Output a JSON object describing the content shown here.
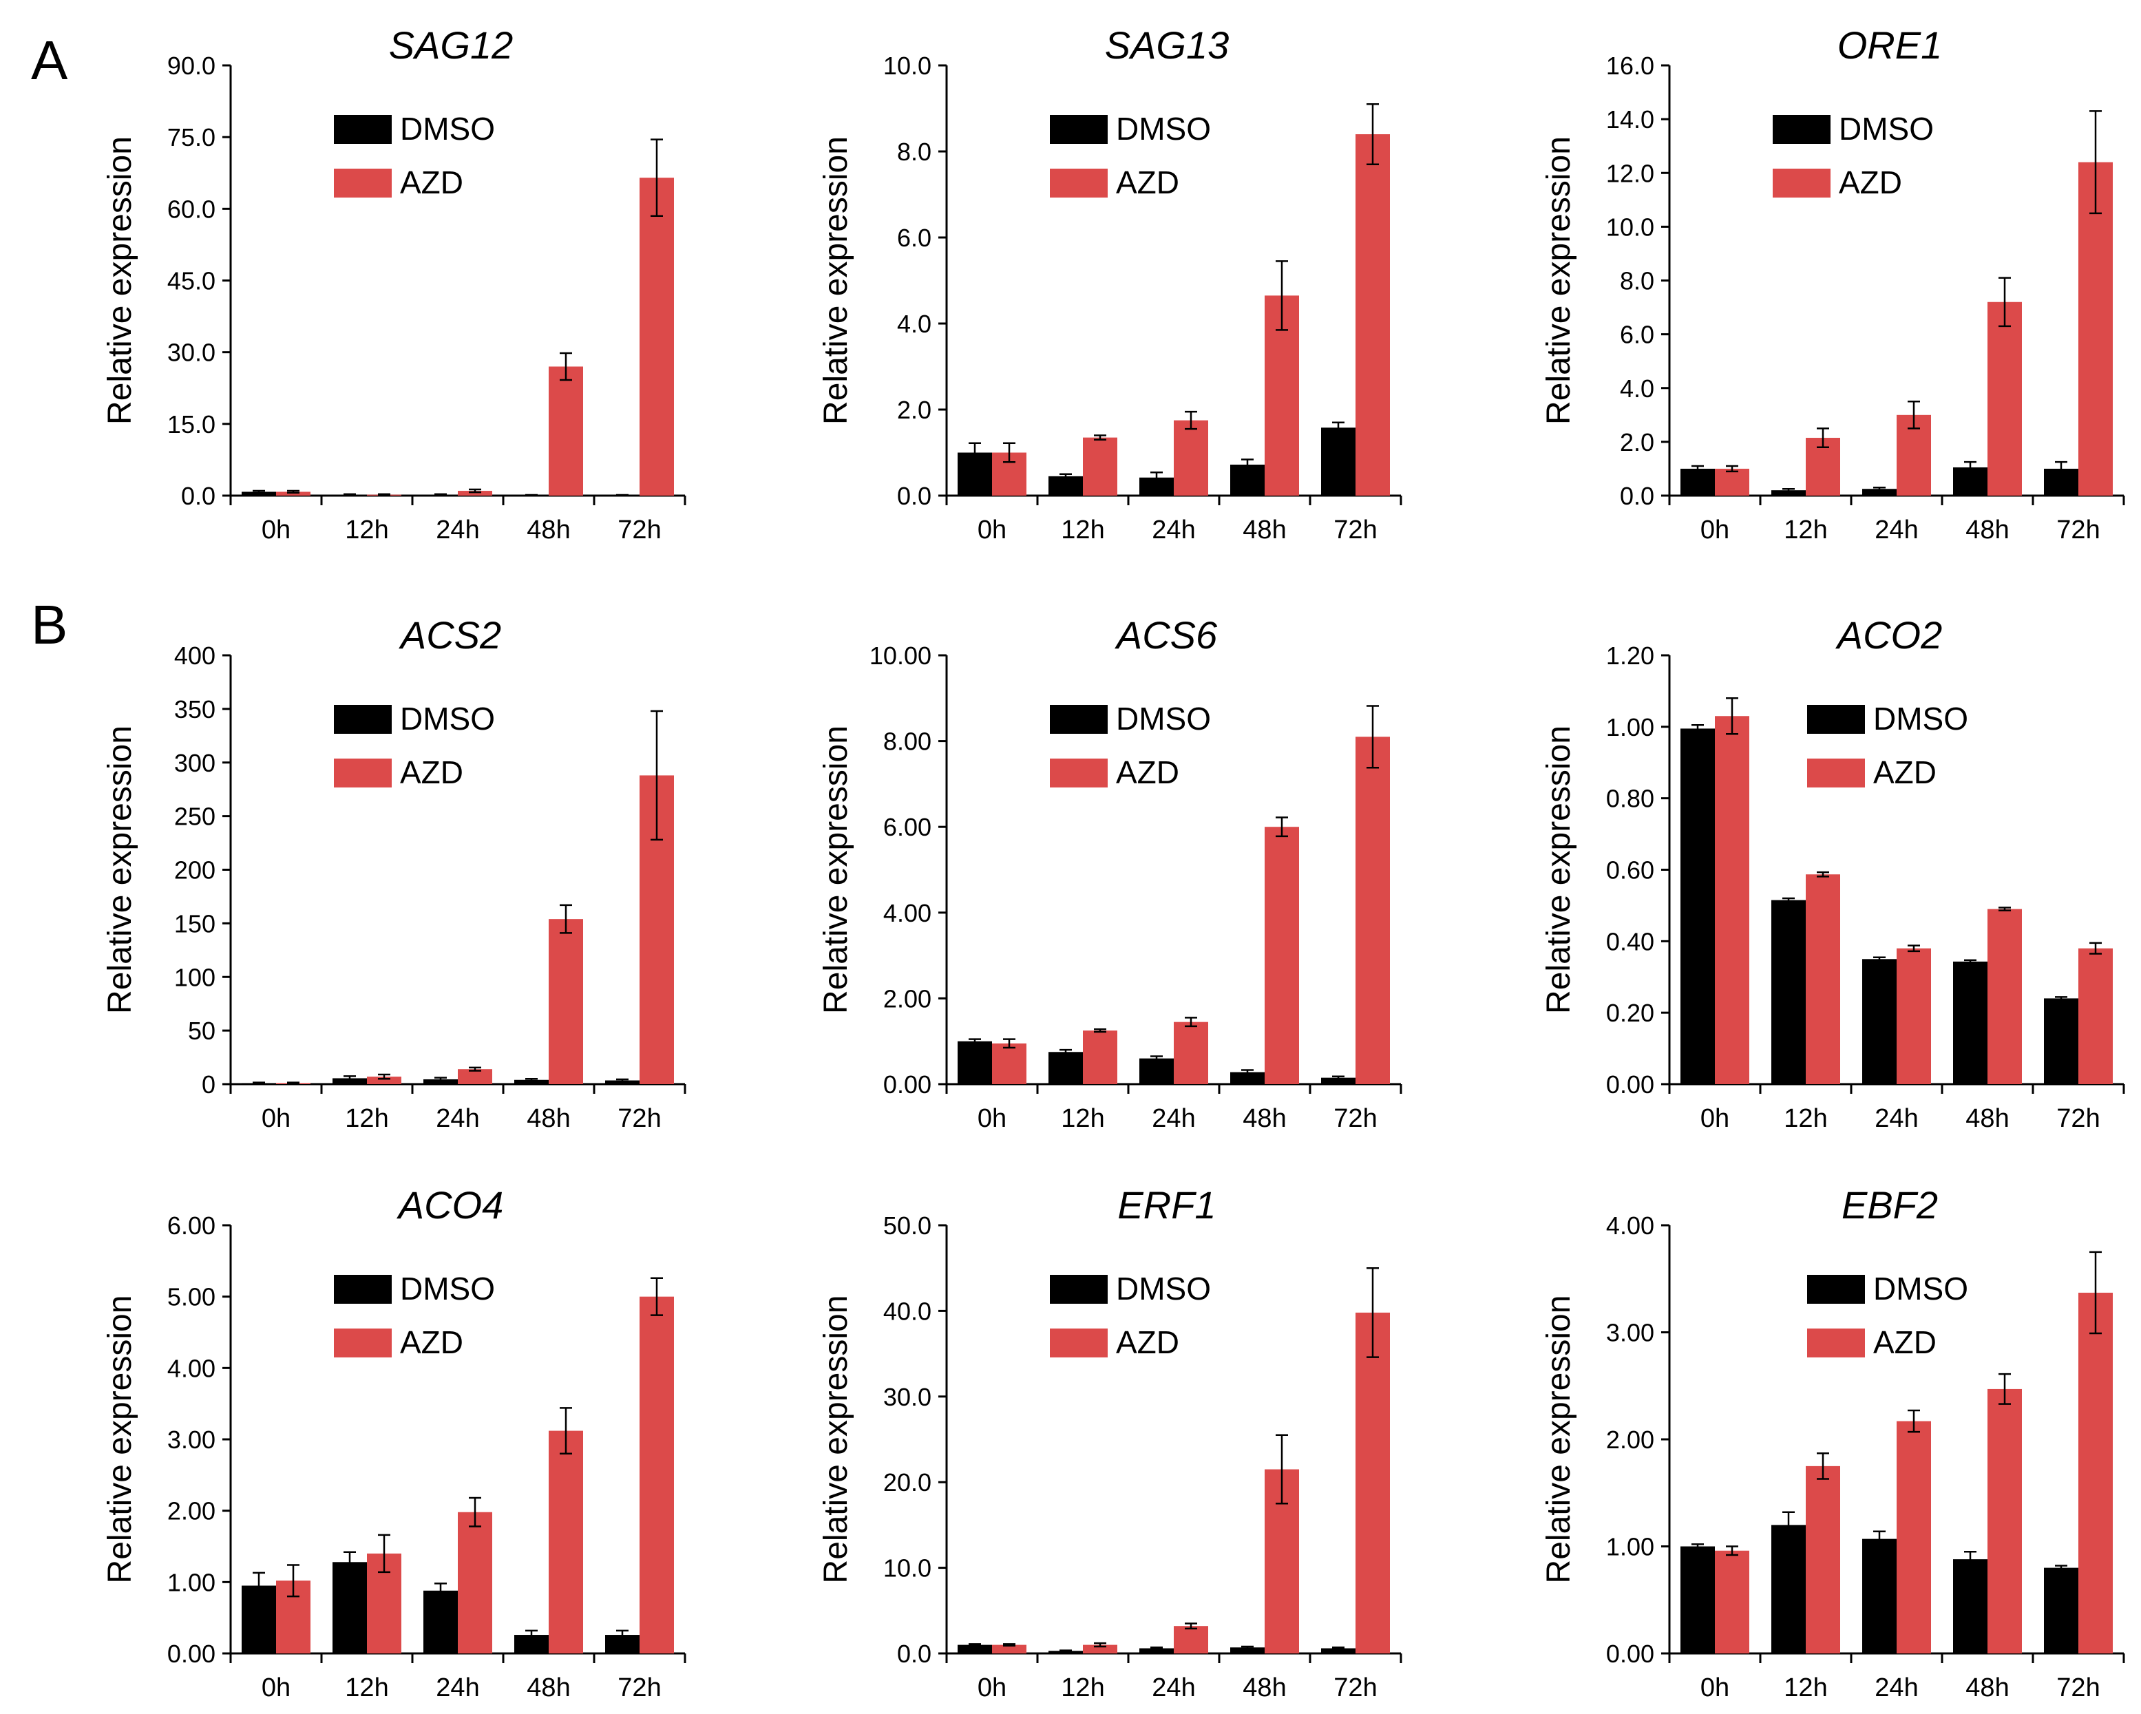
{
  "figure": {
    "panel_labels": [
      "A",
      "B"
    ]
  },
  "colors": {
    "DMSO": "#000000",
    "AZD": "#dc4a4a",
    "axis": "#000000",
    "error_bar": "#000000"
  },
  "chart_data": [
    {
      "type": "bar",
      "title": "SAG12",
      "ylabel": "Relative expression",
      "xlabel": "",
      "categories": [
        "0h",
        "12h",
        "24h",
        "48h",
        "72h"
      ],
      "yticks": [
        "0.0",
        "15.0",
        "30.0",
        "45.0",
        "60.0",
        "75.0",
        "90.0"
      ],
      "ylim": [
        0,
        90
      ],
      "legend": [
        "DMSO",
        "AZD"
      ],
      "legend_position": "top-left",
      "series": [
        {
          "name": "DMSO",
          "values": [
            0.8,
            0.2,
            0.2,
            0.1,
            0.1
          ],
          "errors": [
            0.2,
            0.1,
            0.1,
            0.05,
            0.05
          ]
        },
        {
          "name": "AZD",
          "values": [
            0.8,
            0.2,
            1.0,
            27.0,
            66.5
          ],
          "errors": [
            0.2,
            0.1,
            0.3,
            2.8,
            8.0
          ]
        }
      ]
    },
    {
      "type": "bar",
      "title": "SAG13",
      "ylabel": "Relative expression",
      "xlabel": "",
      "categories": [
        "0h",
        "12h",
        "24h",
        "48h",
        "72h"
      ],
      "yticks": [
        "0.0",
        "2.0",
        "4.0",
        "6.0",
        "8.0",
        "10.0"
      ],
      "ylim": [
        0,
        10
      ],
      "legend": [
        "DMSO",
        "AZD"
      ],
      "legend_position": "top-left",
      "series": [
        {
          "name": "DMSO",
          "values": [
            1.0,
            0.45,
            0.42,
            0.72,
            1.58
          ],
          "errors": [
            0.22,
            0.05,
            0.12,
            0.12,
            0.12
          ]
        },
        {
          "name": "AZD",
          "values": [
            1.0,
            1.35,
            1.75,
            4.65,
            8.4
          ],
          "errors": [
            0.22,
            0.05,
            0.2,
            0.8,
            0.7
          ]
        }
      ]
    },
    {
      "type": "bar",
      "title": "ORE1",
      "ylabel": "Relative expression",
      "xlabel": "",
      "categories": [
        "0h",
        "12h",
        "24h",
        "48h",
        "72h"
      ],
      "yticks": [
        "0.0",
        "2.0",
        "4.0",
        "6.0",
        "8.0",
        "10.0",
        "12.0",
        "14.0",
        "16.0"
      ],
      "ylim": [
        0,
        16
      ],
      "legend": [
        "DMSO",
        "AZD"
      ],
      "legend_position": "top-left",
      "series": [
        {
          "name": "DMSO",
          "values": [
            1.0,
            0.2,
            0.25,
            1.05,
            1.0
          ],
          "errors": [
            0.1,
            0.05,
            0.05,
            0.2,
            0.25
          ]
        },
        {
          "name": "AZD",
          "values": [
            1.0,
            2.15,
            3.0,
            7.2,
            12.4
          ],
          "errors": [
            0.1,
            0.35,
            0.5,
            0.9,
            1.9
          ]
        }
      ]
    },
    {
      "type": "bar",
      "title": "ACS2",
      "ylabel": "Relative expression",
      "xlabel": "",
      "categories": [
        "0h",
        "12h",
        "24h",
        "48h",
        "72h"
      ],
      "yticks": [
        "0",
        "50",
        "100",
        "150",
        "200",
        "250",
        "300",
        "350",
        "400"
      ],
      "ylim": [
        0,
        400
      ],
      "legend": [
        "DMSO",
        "AZD"
      ],
      "legend_position": "top-left",
      "series": [
        {
          "name": "DMSO",
          "values": [
            1.0,
            5.5,
            4.5,
            4.0,
            3.5
          ],
          "errors": [
            0.5,
            2.0,
            1.5,
            1.0,
            1.0
          ]
        },
        {
          "name": "AZD",
          "values": [
            1.0,
            7.0,
            14.0,
            154.0,
            288.0
          ],
          "errors": [
            0.5,
            2.0,
            1.5,
            13.0,
            60.0
          ]
        }
      ]
    },
    {
      "type": "bar",
      "title": "ACS6",
      "ylabel": "Relative expression",
      "xlabel": "",
      "categories": [
        "0h",
        "12h",
        "24h",
        "48h",
        "72h"
      ],
      "yticks": [
        "0.00",
        "2.00",
        "4.00",
        "6.00",
        "8.00",
        "10.00"
      ],
      "ylim": [
        0,
        10
      ],
      "legend": [
        "DMSO",
        "AZD"
      ],
      "legend_position": "top-left",
      "series": [
        {
          "name": "DMSO",
          "values": [
            1.0,
            0.75,
            0.6,
            0.28,
            0.15
          ],
          "errors": [
            0.05,
            0.05,
            0.05,
            0.05,
            0.03
          ]
        },
        {
          "name": "AZD",
          "values": [
            0.95,
            1.25,
            1.45,
            6.0,
            8.1
          ],
          "errors": [
            0.1,
            0.03,
            0.1,
            0.22,
            0.72
          ]
        }
      ]
    },
    {
      "type": "bar",
      "title": "ACO2",
      "ylabel": "Relative expression",
      "xlabel": "",
      "categories": [
        "0h",
        "12h",
        "24h",
        "48h",
        "72h"
      ],
      "yticks": [
        "0.00",
        "0.20",
        "0.40",
        "0.60",
        "0.80",
        "1.00",
        "1.20"
      ],
      "ylim": [
        0,
        1.2
      ],
      "legend": [
        "DMSO",
        "AZD"
      ],
      "legend_position": "top-right",
      "series": [
        {
          "name": "DMSO",
          "values": [
            0.995,
            0.515,
            0.35,
            0.343,
            0.24
          ],
          "errors": [
            0.01,
            0.005,
            0.005,
            0.004,
            0.004
          ]
        },
        {
          "name": "AZD",
          "values": [
            1.03,
            0.587,
            0.38,
            0.49,
            0.38
          ],
          "errors": [
            0.05,
            0.006,
            0.008,
            0.004,
            0.015
          ]
        }
      ]
    },
    {
      "type": "bar",
      "title": "ACO4",
      "ylabel": "Relative expression",
      "xlabel": "",
      "categories": [
        "0h",
        "12h",
        "24h",
        "48h",
        "72h"
      ],
      "yticks": [
        "0.00",
        "1.00",
        "2.00",
        "3.00",
        "4.00",
        "5.00",
        "6.00"
      ],
      "ylim": [
        0,
        6
      ],
      "legend": [
        "DMSO",
        "AZD"
      ],
      "legend_position": "top-left",
      "series": [
        {
          "name": "DMSO",
          "values": [
            0.95,
            1.28,
            0.88,
            0.26,
            0.26
          ],
          "errors": [
            0.18,
            0.14,
            0.1,
            0.06,
            0.06
          ]
        },
        {
          "name": "AZD",
          "values": [
            1.02,
            1.4,
            1.98,
            3.12,
            5.0
          ],
          "errors": [
            0.22,
            0.26,
            0.2,
            0.32,
            0.26
          ]
        }
      ]
    },
    {
      "type": "bar",
      "title": "ERF1",
      "ylabel": "Relative expression",
      "xlabel": "",
      "categories": [
        "0h",
        "12h",
        "24h",
        "48h",
        "72h"
      ],
      "yticks": [
        "0.0",
        "10.0",
        "20.0",
        "30.0",
        "40.0",
        "50.0"
      ],
      "ylim": [
        0,
        50
      ],
      "legend": [
        "DMSO",
        "AZD"
      ],
      "legend_position": "top-left",
      "series": [
        {
          "name": "DMSO",
          "values": [
            1.0,
            0.3,
            0.6,
            0.7,
            0.6
          ],
          "errors": [
            0.1,
            0.05,
            0.1,
            0.1,
            0.1
          ]
        },
        {
          "name": "AZD",
          "values": [
            1.0,
            1.0,
            3.2,
            21.5,
            39.8
          ],
          "errors": [
            0.1,
            0.2,
            0.3,
            4.0,
            5.2
          ]
        }
      ]
    },
    {
      "type": "bar",
      "title": "EBF2",
      "ylabel": "Relative expression",
      "xlabel": "",
      "categories": [
        "0h",
        "12h",
        "24h",
        "48h",
        "72h"
      ],
      "yticks": [
        "0.00",
        "1.00",
        "2.00",
        "3.00",
        "4.00"
      ],
      "ylim": [
        0,
        4
      ],
      "legend": [
        "DMSO",
        "AZD"
      ],
      "legend_position": "top-right",
      "series": [
        {
          "name": "DMSO",
          "values": [
            1.0,
            1.2,
            1.07,
            0.88,
            0.8
          ],
          "errors": [
            0.02,
            0.12,
            0.07,
            0.07,
            0.02
          ]
        },
        {
          "name": "AZD",
          "values": [
            0.96,
            1.75,
            2.17,
            2.47,
            3.37
          ],
          "errors": [
            0.04,
            0.12,
            0.1,
            0.14,
            0.38
          ]
        }
      ]
    }
  ]
}
